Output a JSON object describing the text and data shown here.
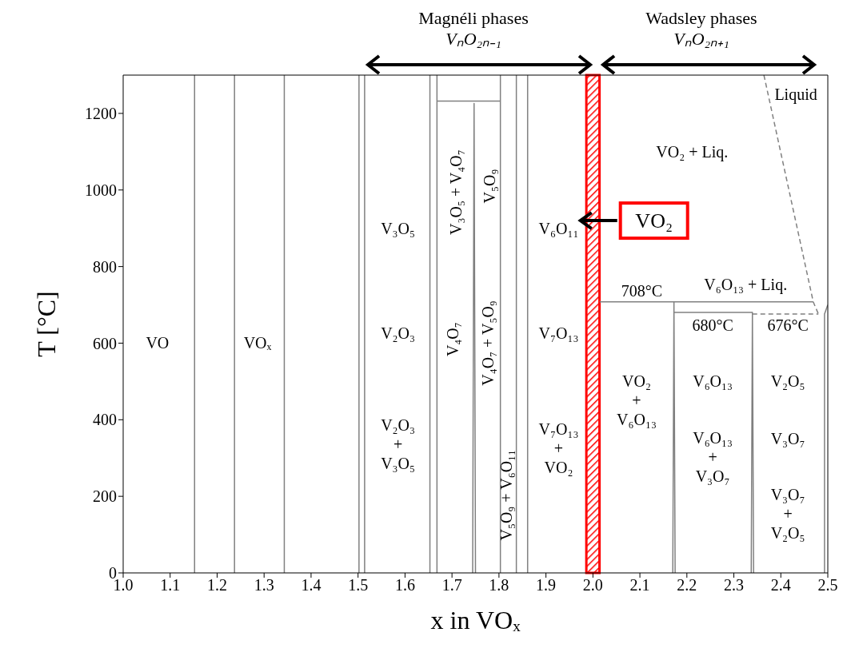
{
  "chart_data": {
    "type": "line",
    "xlabel": "x in VOₓ",
    "ylabel": "T [°C]",
    "xlim": [
      1,
      2.5
    ],
    "ylim": [
      0,
      1300
    ],
    "xticks": [
      {
        "value": 1,
        "label": "1.0"
      },
      1.1,
      1.2,
      1.3,
      1.4,
      1.5,
      1.6,
      1.7,
      1.8,
      1.9,
      {
        "value": 2,
        "label": "2.0"
      },
      2.1,
      2.2,
      2.3,
      2.4,
      2.5
    ],
    "yticks": [
      0,
      200,
      400,
      600,
      800,
      1000,
      1200
    ],
    "marker": "none",
    "series": [
      {
        "color": "#808080",
        "x": [
          1.152,
          1.152
        ],
        "values": [
          0,
          1300
        ]
      },
      {
        "color": "#808080",
        "x": [
          1.237,
          1.237
        ],
        "values": [
          0,
          1300
        ]
      },
      {
        "color": "#808080",
        "x": [
          1.343,
          1.343
        ],
        "values": [
          0,
          1300
        ]
      },
      {
        "color": "#808080",
        "x": [
          1.502,
          1.502
        ],
        "values": [
          0,
          1300
        ]
      },
      {
        "color": "#808080",
        "x": [
          1.514,
          1.514
        ],
        "values": [
          0,
          1300
        ]
      },
      {
        "color": "#808080",
        "x": [
          1.653,
          1.653
        ],
        "values": [
          0,
          1300
        ]
      },
      {
        "color": "#808080",
        "x": [
          1.668,
          1.668
        ],
        "values": [
          0,
          1300
        ]
      },
      {
        "color": "#808080",
        "x": [
          1.744,
          1.747,
          1.75
        ],
        "values": [
          0,
          1226,
          0
        ]
      },
      {
        "color": "#808080",
        "x": [
          1.803,
          1.803
        ],
        "values": [
          0,
          1300
        ]
      },
      {
        "color": "#808080",
        "x": [
          1.837,
          1.837
        ],
        "values": [
          0,
          1300
        ]
      },
      {
        "color": "#808080",
        "x": [
          1.861,
          1.861
        ],
        "values": [
          0,
          1300
        ]
      },
      {
        "color": "#808080",
        "x": [
          1.668,
          1.803
        ],
        "values": [
          1232,
          1232
        ]
      },
      {
        "color": "#808080",
        "x": [
          2.014,
          2.469
        ],
        "values": [
          708,
          708
        ]
      },
      {
        "color": "#808080",
        "x": [
          2.17,
          2.1725,
          2.175
        ],
        "values": [
          0,
          708,
          0
        ]
      },
      {
        "color": "#808080",
        "x": [
          2.1725,
          2.3395
        ],
        "values": [
          680,
          680
        ]
      },
      {
        "color": "#808080",
        "x": [
          2.337,
          2.3395,
          2.342
        ],
        "values": [
          0,
          680,
          0
        ]
      },
      {
        "color": "#808080",
        "x": [
          2.3395,
          2.48
        ],
        "values": [
          676,
          676
        ],
        "line_style": "dashed"
      },
      {
        "color": "#808080",
        "x": [
          2.493,
          2.493,
          2.5
        ],
        "values": [
          0,
          676,
          700
        ]
      },
      {
        "color": "#808080",
        "x": [
          2.364,
          2.469,
          2.48
        ],
        "values": [
          1300,
          708,
          676
        ],
        "line_style": "dashed"
      }
    ],
    "bands": [
      {
        "axis": "x",
        "from": 1.986,
        "to": 2.014,
        "color": "#ff0000"
      }
    ],
    "annotations": [
      "Magnéli phases\nVₙO₂ₙ₋₁",
      "Wadsley phases\nVₙO₂ₙ₊₁",
      "VO",
      "VOₓ",
      "V₃O₅",
      "V₂O₃",
      "V₂O₃\n+\nV₃O₅",
      "V₃O₅ + V₄O₇",
      "V₅O₉",
      "V₄O₇",
      "V₄O₇ + V₅O₉",
      "V₅O₉ + V₆O₁₁",
      "V₆O₁₁",
      "V₇O₁₃",
      "V₇O₁₃\n+\nVO₂",
      "VO₂",
      "Liquid",
      "VO₂ + Liq.",
      "708°C",
      "V₆O₁₃ + Liq.",
      "680°C",
      "676°C",
      "VO₂\n+\nV₆O₁₃",
      "V₆O₁₃",
      "V₂O₅",
      "V₆O₁₃\n+\nV₃O₇",
      "V₃O₇",
      "V₃O₇\n+\nV₂O₅"
    ]
  }
}
